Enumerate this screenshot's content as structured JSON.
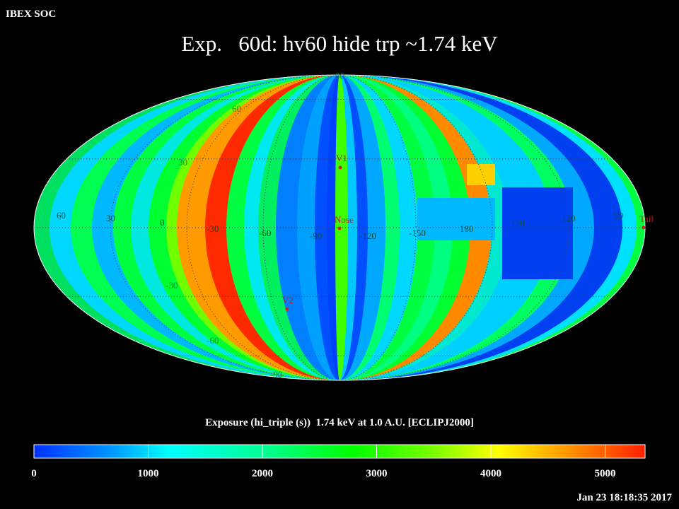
{
  "header": "IBEX SOC",
  "title": "Exp.   60d: hv60 hide trp ~1.74 keV",
  "lat_labels": [
    "90",
    "60",
    "30",
    "-30",
    "-60",
    "-90"
  ],
  "lon_labels": [
    "60",
    "30",
    "0",
    "-30",
    "-60",
    "-90",
    "-120",
    "-150",
    "180",
    "150",
    "120",
    "90"
  ],
  "markers": [
    "V1",
    "Nose",
    "V2",
    "Tail"
  ],
  "colorbar": {
    "title": "Exposure (hi_triple (s))  1.74 keV at 1.0 A.U. [ECLIPJ2000]",
    "lim": [
      0,
      5350
    ],
    "ticks": [
      0,
      1000,
      2000,
      3000,
      4000,
      5000
    ]
  },
  "timestamp": "Jan 23 18:18:35 2017"
}
